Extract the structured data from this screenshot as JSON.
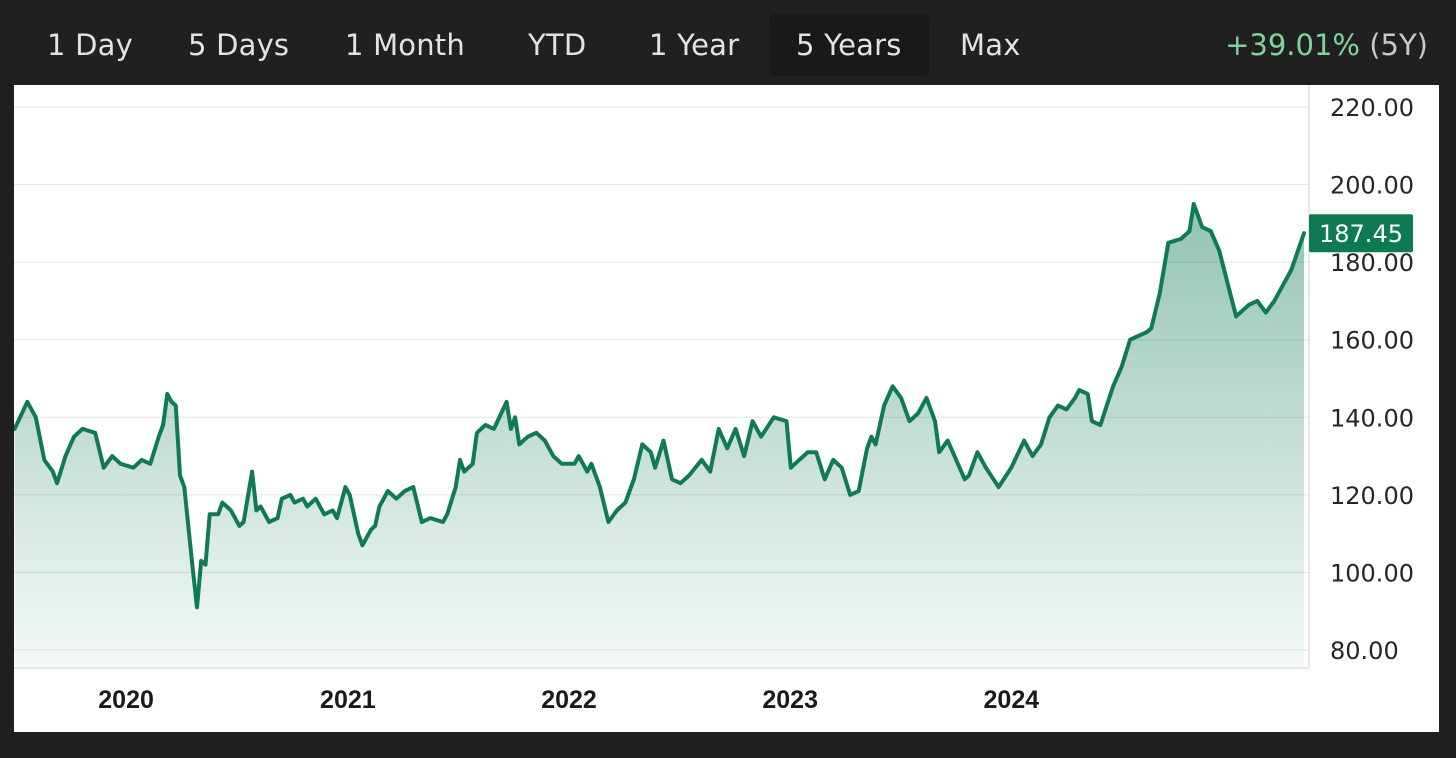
{
  "tabs": [
    {
      "label": "1 Day"
    },
    {
      "label": "5 Days"
    },
    {
      "label": "1 Month"
    },
    {
      "label": "YTD"
    },
    {
      "label": "1 Year"
    },
    {
      "label": "5 Years",
      "active": true
    },
    {
      "label": "Max"
    }
  ],
  "change": {
    "percent": "+39.01%",
    "period": "(5Y)"
  },
  "colors": {
    "line": "#0f7a55",
    "positive": "#7fd49b",
    "badge": "#0e7a52"
  },
  "chart_data": {
    "type": "area",
    "current_value": "187.45",
    "ylim": [
      80,
      220
    ],
    "yticks": [
      "220.00",
      "200.00",
      "180.00",
      "160.00",
      "140.00",
      "120.00",
      "100.00",
      "80.00"
    ],
    "xticks": [
      "2020",
      "2021",
      "2022",
      "2023",
      "2024"
    ],
    "grid": true,
    "series": [
      {
        "points": [
          [
            "2019-07-01",
            137
          ],
          [
            "2019-07-22",
            144
          ],
          [
            "2019-08-05",
            140
          ],
          [
            "2019-08-19",
            129
          ],
          [
            "2019-09-02",
            126
          ],
          [
            "2019-09-09",
            123
          ],
          [
            "2019-09-23",
            130
          ],
          [
            "2019-10-07",
            135
          ],
          [
            "2019-10-21",
            137
          ],
          [
            "2019-11-11",
            136
          ],
          [
            "2019-11-25",
            127
          ],
          [
            "2019-12-09",
            130
          ],
          [
            "2019-12-23",
            128
          ],
          [
            "2020-01-13",
            127
          ],
          [
            "2020-01-27",
            129
          ],
          [
            "2020-02-10",
            128
          ],
          [
            "2020-02-24",
            135
          ],
          [
            "2020-03-02",
            138
          ],
          [
            "2020-03-09",
            146
          ],
          [
            "2020-03-16",
            144
          ],
          [
            "2020-03-23",
            143
          ],
          [
            "2020-03-30",
            125
          ],
          [
            "2020-04-06",
            122
          ],
          [
            "2020-04-20",
            101
          ],
          [
            "2020-04-27",
            91
          ],
          [
            "2020-05-04",
            103
          ],
          [
            "2020-05-11",
            102
          ],
          [
            "2020-05-18",
            115
          ],
          [
            "2020-06-01",
            115
          ],
          [
            "2020-06-08",
            118
          ],
          [
            "2020-06-22",
            116
          ],
          [
            "2020-07-06",
            112
          ],
          [
            "2020-07-13",
            113
          ],
          [
            "2020-07-27",
            126
          ],
          [
            "2020-08-03",
            116
          ],
          [
            "2020-08-10",
            117
          ],
          [
            "2020-08-24",
            113
          ],
          [
            "2020-09-07",
            114
          ],
          [
            "2020-09-14",
            119
          ],
          [
            "2020-09-28",
            120
          ],
          [
            "2020-10-05",
            118
          ],
          [
            "2020-10-19",
            119
          ],
          [
            "2020-10-26",
            117
          ],
          [
            "2020-11-09",
            119
          ],
          [
            "2020-11-23",
            115
          ],
          [
            "2020-12-07",
            116
          ],
          [
            "2020-12-14",
            114
          ],
          [
            "2020-12-28",
            122
          ],
          [
            "2021-01-04",
            120
          ],
          [
            "2021-01-18",
            110
          ],
          [
            "2021-01-25",
            107
          ],
          [
            "2021-02-08",
            111
          ],
          [
            "2021-02-15",
            112
          ],
          [
            "2021-02-22",
            117
          ],
          [
            "2021-03-08",
            121
          ],
          [
            "2021-03-22",
            119
          ],
          [
            "2021-04-05",
            121
          ],
          [
            "2021-04-19",
            122
          ],
          [
            "2021-05-03",
            113
          ],
          [
            "2021-05-17",
            114
          ],
          [
            "2021-06-07",
            113
          ],
          [
            "2021-06-14",
            115
          ],
          [
            "2021-06-28",
            122
          ],
          [
            "2021-07-05",
            129
          ],
          [
            "2021-07-12",
            126
          ],
          [
            "2021-07-26",
            128
          ],
          [
            "2021-08-02",
            136
          ],
          [
            "2021-08-16",
            138
          ],
          [
            "2021-08-30",
            137
          ],
          [
            "2021-09-20",
            144
          ],
          [
            "2021-09-27",
            137
          ],
          [
            "2021-10-04",
            140
          ],
          [
            "2021-10-11",
            133
          ],
          [
            "2021-10-25",
            135
          ],
          [
            "2021-11-08",
            136
          ],
          [
            "2021-11-22",
            134
          ],
          [
            "2021-12-06",
            130
          ],
          [
            "2021-12-20",
            128
          ],
          [
            "2022-01-10",
            128
          ],
          [
            "2022-01-17",
            130
          ],
          [
            "2022-01-31",
            126
          ],
          [
            "2022-02-07",
            128
          ],
          [
            "2022-02-21",
            122
          ],
          [
            "2022-03-07",
            113
          ],
          [
            "2022-03-21",
            116
          ],
          [
            "2022-04-04",
            118
          ],
          [
            "2022-04-18",
            124
          ],
          [
            "2022-05-02",
            133
          ],
          [
            "2022-05-16",
            131
          ],
          [
            "2022-05-23",
            127
          ],
          [
            "2022-06-06",
            134
          ],
          [
            "2022-06-20",
            124
          ],
          [
            "2022-07-04",
            123
          ],
          [
            "2022-07-18",
            125
          ],
          [
            "2022-08-08",
            129
          ],
          [
            "2022-08-22",
            126
          ],
          [
            "2022-09-05",
            137
          ],
          [
            "2022-09-19",
            132
          ],
          [
            "2022-10-03",
            137
          ],
          [
            "2022-10-17",
            130
          ],
          [
            "2022-10-31",
            139
          ],
          [
            "2022-11-14",
            135
          ],
          [
            "2022-12-05",
            140
          ],
          [
            "2022-12-26",
            139
          ],
          [
            "2023-01-02",
            127
          ],
          [
            "2023-01-16",
            129
          ],
          [
            "2023-01-30",
            131
          ],
          [
            "2023-02-13",
            131
          ],
          [
            "2023-02-27",
            124
          ],
          [
            "2023-03-13",
            129
          ],
          [
            "2023-03-27",
            127
          ],
          [
            "2023-04-10",
            120
          ],
          [
            "2023-04-24",
            121
          ],
          [
            "2023-05-08",
            132
          ],
          [
            "2023-05-15",
            135
          ],
          [
            "2023-05-22",
            133
          ],
          [
            "2023-06-05",
            143
          ],
          [
            "2023-06-19",
            148
          ],
          [
            "2023-07-03",
            145
          ],
          [
            "2023-07-17",
            139
          ],
          [
            "2023-07-31",
            141
          ],
          [
            "2023-08-14",
            145
          ],
          [
            "2023-08-28",
            139
          ],
          [
            "2023-09-04",
            131
          ],
          [
            "2023-09-18",
            134
          ],
          [
            "2023-10-02",
            129
          ],
          [
            "2023-10-16",
            124
          ],
          [
            "2023-10-23",
            125
          ],
          [
            "2023-11-06",
            131
          ],
          [
            "2023-11-20",
            127
          ],
          [
            "2023-12-11",
            122
          ],
          [
            "2024-01-01",
            127
          ],
          [
            "2024-01-22",
            134
          ],
          [
            "2024-02-05",
            130
          ],
          [
            "2024-02-19",
            133
          ],
          [
            "2024-03-04",
            140
          ],
          [
            "2024-03-18",
            143
          ],
          [
            "2024-04-01",
            142
          ],
          [
            "2024-04-15",
            145
          ],
          [
            "2024-04-22",
            147
          ],
          [
            "2024-05-06",
            146
          ],
          [
            "2024-05-13",
            139
          ],
          [
            "2024-05-27",
            138
          ],
          [
            "2024-06-17",
            148
          ],
          [
            "2024-07-01",
            153
          ],
          [
            "2024-07-15",
            160
          ],
          [
            "2024-07-29",
            161
          ],
          [
            "2024-08-12",
            162
          ],
          [
            "2024-08-19",
            163
          ],
          [
            "2024-09-02",
            172
          ],
          [
            "2024-09-16",
            185
          ],
          [
            "2024-10-07",
            186
          ],
          [
            "2024-10-21",
            188
          ],
          [
            "2024-10-28",
            195
          ],
          [
            "2024-11-11",
            189
          ],
          [
            "2024-11-25",
            188
          ],
          [
            "2024-12-09",
            183
          ],
          [
            "2025-01-06",
            166
          ],
          [
            "2025-01-27",
            169
          ],
          [
            "2025-02-10",
            170
          ],
          [
            "2025-02-24",
            167
          ],
          [
            "2025-03-10",
            170
          ],
          [
            "2025-03-24",
            174
          ],
          [
            "2025-04-07",
            178
          ],
          [
            "2025-04-28",
            187.45
          ]
        ]
      }
    ]
  }
}
